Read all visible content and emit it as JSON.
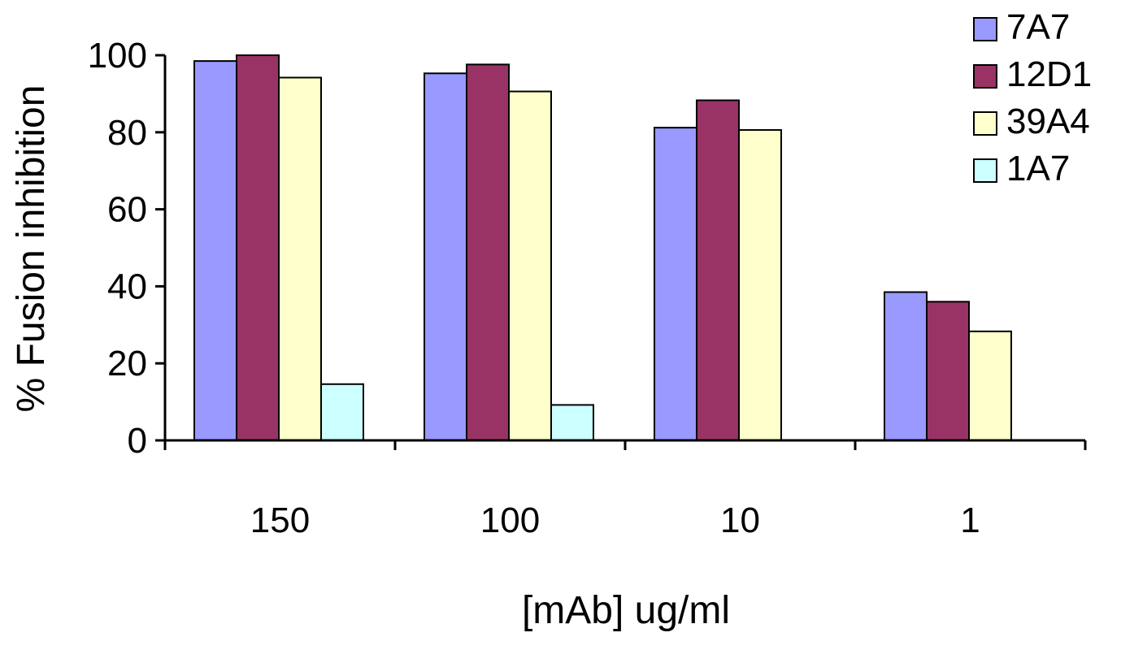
{
  "chart_data": {
    "type": "bar",
    "title": "",
    "xlabel": "[mAb] ug/ml",
    "ylabel": "% Fusion inhibition",
    "categories": [
      "150",
      "100",
      "10",
      "1"
    ],
    "ylim": [
      0,
      100
    ],
    "yticks": [
      0,
      20,
      40,
      60,
      80,
      100
    ],
    "grid": false,
    "legend_position": "top-right",
    "series": [
      {
        "name": "7A7",
        "color": "#9999ff",
        "values": [
          98.5,
          95.3,
          81.2,
          38.5
        ]
      },
      {
        "name": "12D1",
        "color": "#993366",
        "values": [
          100,
          97.6,
          88.3,
          36
        ]
      },
      {
        "name": "39A4",
        "color": "#ffffcc",
        "values": [
          94.2,
          90.6,
          80.6,
          28.3
        ]
      },
      {
        "name": "1A7",
        "color": "#ccffff",
        "values": [
          14.6,
          9.2,
          0,
          0
        ]
      }
    ]
  }
}
